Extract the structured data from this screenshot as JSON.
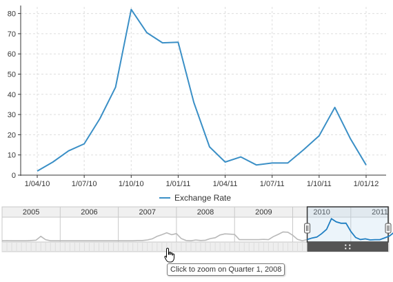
{
  "chart_data": {
    "type": "line",
    "title": "",
    "xlabel": "",
    "ylabel": "",
    "ylim": [
      0,
      85
    ],
    "y_ticks": [
      0,
      10,
      20,
      30,
      40,
      50,
      60,
      70,
      80
    ],
    "x_tick_labels": [
      "1/04/10",
      "1/07/10",
      "1/10/10",
      "1/01/11",
      "1/04/11",
      "1/07/11",
      "1/10/11",
      "1/01/12"
    ],
    "grid": true,
    "legend_position": "bottom",
    "series": [
      {
        "name": "Exchange Rate",
        "color": "#3a8fc6",
        "x": [
          "2010-04",
          "2010-05",
          "2010-06",
          "2010-07",
          "2010-08",
          "2010-09",
          "2010-10",
          "2010-11",
          "2010-12",
          "2011-01",
          "2011-02",
          "2011-03",
          "2011-04",
          "2011-05",
          "2011-06",
          "2011-07",
          "2011-08",
          "2011-09",
          "2011-10",
          "2011-11",
          "2011-12",
          "2012-01"
        ],
        "values": [
          2,
          6.5,
          12,
          15.5,
          28,
          43.5,
          82,
          70.5,
          65.5,
          65.8,
          36,
          14,
          6.5,
          9,
          5,
          6,
          6,
          12.5,
          19.5,
          33.5,
          18,
          5
        ]
      }
    ]
  },
  "navigator": {
    "year_labels": [
      "2005",
      "2006",
      "2007",
      "2008",
      "2009",
      "2010",
      "2011"
    ],
    "overview_color": "#b8b8b8",
    "selection_color": "#1f7ec2",
    "selection_range": [
      "2010-04",
      "2012-01"
    ],
    "overview_values": [
      2,
      2.5,
      2,
      2,
      2,
      2,
      3,
      4,
      18,
      6,
      2,
      2,
      2,
      2,
      2,
      2,
      2,
      2,
      2,
      2,
      2,
      2,
      2,
      2,
      2,
      2,
      2,
      2,
      3,
      3,
      5,
      9,
      18,
      24,
      31,
      24,
      28,
      10,
      3,
      2,
      5,
      3,
      4,
      10,
      13,
      23,
      27,
      26,
      25,
      6,
      6,
      6,
      6,
      6,
      7,
      6,
      17,
      25,
      34,
      33,
      22,
      7,
      2,
      6.5,
      12,
      15.5,
      28,
      43.5,
      82,
      70.5,
      65.5,
      65.8,
      36,
      14,
      6.5,
      9,
      5,
      6,
      6,
      12.5,
      19.5,
      33.5,
      18,
      5
    ]
  },
  "tooltip": {
    "text": "Click to zoom on Quarter 1, 2008"
  }
}
